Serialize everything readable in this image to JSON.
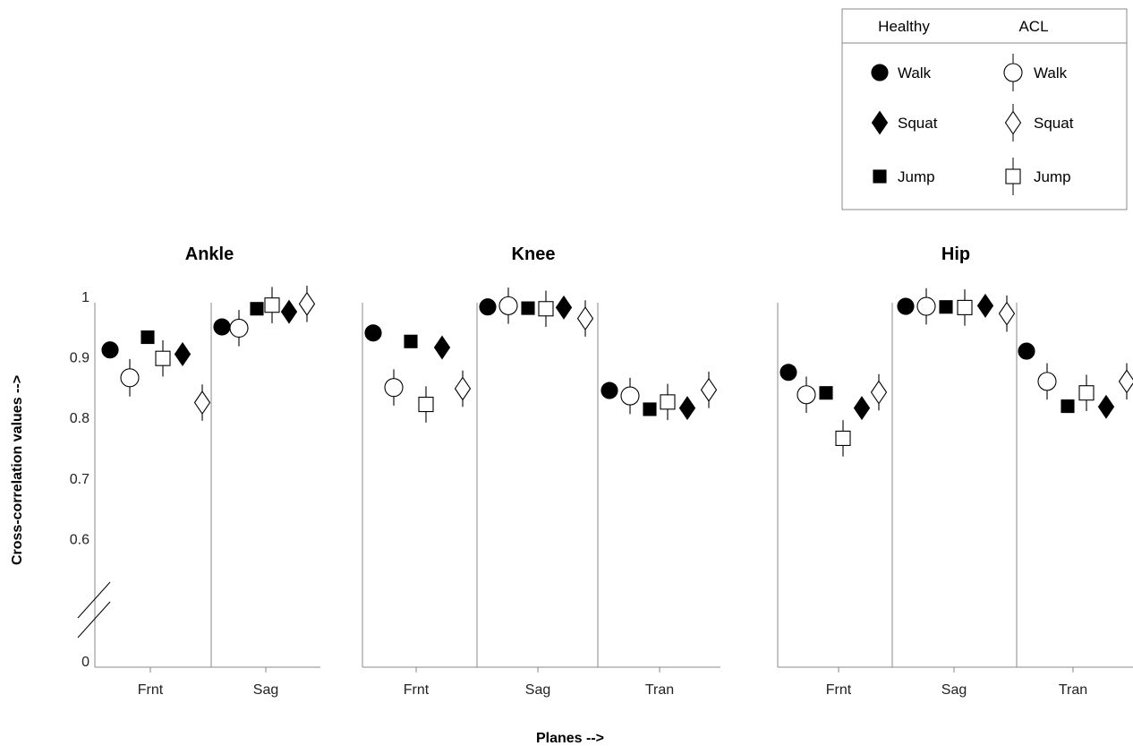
{
  "chart_data": {
    "type": "scatter",
    "ylabel": "Cross-correlation values  -->",
    "xlabel": "Planes -->",
    "y_ticks": [
      "1",
      "0.9",
      "0.8",
      "0.7",
      "0.6",
      "0"
    ],
    "y_break": true,
    "legend": {
      "position": "top-right",
      "headers": [
        "Healthy",
        "ACL"
      ],
      "entries": [
        {
          "group": "Healthy",
          "task": "Walk",
          "marker": "filled-circle"
        },
        {
          "group": "ACL",
          "task": "Walk",
          "marker": "open-circle"
        },
        {
          "group": "Healthy",
          "task": "Squat",
          "marker": "filled-diamond"
        },
        {
          "group": "ACL",
          "task": "Squat",
          "marker": "open-diamond"
        },
        {
          "group": "Healthy",
          "task": "Jump",
          "marker": "filled-square"
        },
        {
          "group": "ACL",
          "task": "Jump",
          "marker": "open-square"
        }
      ]
    },
    "panels": [
      {
        "title": "Ankle",
        "planes": [
          {
            "label": "Frnt",
            "points": [
              {
                "group": "Healthy",
                "task": "Walk",
                "y": 0.922
              },
              {
                "group": "ACL",
                "task": "Walk",
                "y": 0.876,
                "err": 0.031
              },
              {
                "group": "Healthy",
                "task": "Jump",
                "y": 0.943
              },
              {
                "group": "ACL",
                "task": "Jump",
                "y": 0.908,
                "err": 0.03
              },
              {
                "group": "Healthy",
                "task": "Squat",
                "y": 0.915
              },
              {
                "group": "ACL",
                "task": "Squat",
                "y": 0.835,
                "err": 0.03
              }
            ]
          },
          {
            "label": "Sag",
            "points": [
              {
                "group": "Healthy",
                "task": "Walk",
                "y": 0.96
              },
              {
                "group": "ACL",
                "task": "Walk",
                "y": 0.958,
                "err": 0.03
              },
              {
                "group": "Healthy",
                "task": "Jump",
                "y": 0.99
              },
              {
                "group": "ACL",
                "task": "Jump",
                "y": 0.996,
                "err": 0.03
              },
              {
                "group": "Healthy",
                "task": "Squat",
                "y": 0.985
              },
              {
                "group": "ACL",
                "task": "Squat",
                "y": 0.998,
                "err": 0.03
              }
            ]
          }
        ]
      },
      {
        "title": "Knee",
        "planes": [
          {
            "label": "Frnt",
            "points": [
              {
                "group": "Healthy",
                "task": "Walk",
                "y": 0.95
              },
              {
                "group": "ACL",
                "task": "Walk",
                "y": 0.86,
                "err": 0.03
              },
              {
                "group": "Healthy",
                "task": "Jump",
                "y": 0.936
              },
              {
                "group": "ACL",
                "task": "Jump",
                "y": 0.832,
                "err": 0.03
              },
              {
                "group": "Healthy",
                "task": "Squat",
                "y": 0.926
              },
              {
                "group": "ACL",
                "task": "Squat",
                "y": 0.858,
                "err": 0.03
              }
            ]
          },
          {
            "label": "Sag",
            "points": [
              {
                "group": "Healthy",
                "task": "Walk",
                "y": 0.993
              },
              {
                "group": "ACL",
                "task": "Walk",
                "y": 0.995,
                "err": 0.03
              },
              {
                "group": "Healthy",
                "task": "Jump",
                "y": 0.991
              },
              {
                "group": "ACL",
                "task": "Jump",
                "y": 0.99,
                "err": 0.03
              },
              {
                "group": "Healthy",
                "task": "Squat",
                "y": 0.992
              },
              {
                "group": "ACL",
                "task": "Squat",
                "y": 0.974,
                "err": 0.03
              }
            ]
          },
          {
            "label": "Tran",
            "points": [
              {
                "group": "Healthy",
                "task": "Walk",
                "y": 0.855
              },
              {
                "group": "ACL",
                "task": "Walk",
                "y": 0.846,
                "err": 0.03
              },
              {
                "group": "Healthy",
                "task": "Jump",
                "y": 0.824
              },
              {
                "group": "ACL",
                "task": "Jump",
                "y": 0.836,
                "err": 0.03
              },
              {
                "group": "Healthy",
                "task": "Squat",
                "y": 0.826
              },
              {
                "group": "ACL",
                "task": "Squat",
                "y": 0.856,
                "err": 0.03
              }
            ]
          }
        ]
      },
      {
        "title": "Hip",
        "planes": [
          {
            "label": "Frnt",
            "points": [
              {
                "group": "Healthy",
                "task": "Walk",
                "y": 0.885
              },
              {
                "group": "ACL",
                "task": "Walk",
                "y": 0.848,
                "err": 0.03
              },
              {
                "group": "Healthy",
                "task": "Jump",
                "y": 0.851
              },
              {
                "group": "ACL",
                "task": "Jump",
                "y": 0.776,
                "err": 0.03
              },
              {
                "group": "Healthy",
                "task": "Squat",
                "y": 0.826
              },
              {
                "group": "ACL",
                "task": "Squat",
                "y": 0.852,
                "err": 0.03
              }
            ]
          },
          {
            "label": "Sag",
            "points": [
              {
                "group": "Healthy",
                "task": "Walk",
                "y": 0.994
              },
              {
                "group": "ACL",
                "task": "Walk",
                "y": 0.994,
                "err": 0.03
              },
              {
                "group": "Healthy",
                "task": "Jump",
                "y": 0.993
              },
              {
                "group": "ACL",
                "task": "Jump",
                "y": 0.992,
                "err": 0.03
              },
              {
                "group": "Healthy",
                "task": "Squat",
                "y": 0.995
              },
              {
                "group": "ACL",
                "task": "Squat",
                "y": 0.982,
                "err": 0.03
              }
            ]
          },
          {
            "label": "Tran",
            "points": [
              {
                "group": "Healthy",
                "task": "Walk",
                "y": 0.92
              },
              {
                "group": "ACL",
                "task": "Walk",
                "y": 0.87,
                "err": 0.03
              },
              {
                "group": "Healthy",
                "task": "Jump",
                "y": 0.829
              },
              {
                "group": "ACL",
                "task": "Jump",
                "y": 0.851,
                "err": 0.03
              },
              {
                "group": "Healthy",
                "task": "Squat",
                "y": 0.828
              },
              {
                "group": "ACL",
                "task": "Squat",
                "y": 0.87,
                "err": 0.03
              }
            ]
          }
        ]
      }
    ]
  }
}
